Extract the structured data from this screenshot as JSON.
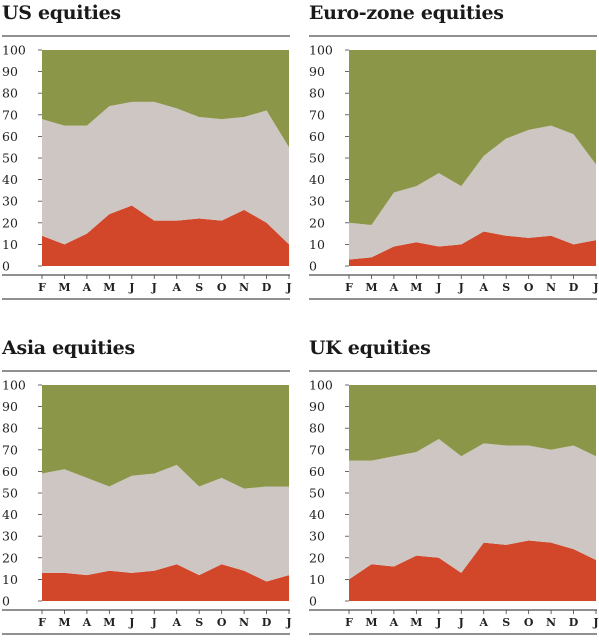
{
  "chart_data": [
    {
      "type": "area",
      "stacked": true,
      "title": "US equities",
      "categories": [
        "F",
        "M",
        "A",
        "M",
        "J",
        "J",
        "A",
        "S",
        "O",
        "N",
        "D",
        "J"
      ],
      "ylim": [
        0,
        100
      ],
      "yticks": [
        0,
        10,
        20,
        30,
        40,
        50,
        60,
        70,
        80,
        90,
        100
      ],
      "series": [
        {
          "color": "#d2472a",
          "values": [
            14,
            10,
            15,
            24,
            28,
            21,
            21,
            22,
            21,
            26,
            20,
            10
          ]
        },
        {
          "color": "#cdc6c3",
          "values": [
            54,
            55,
            50,
            50,
            48,
            55,
            52,
            47,
            47,
            43,
            52,
            45
          ]
        },
        {
          "color": "#8b9648",
          "values": [
            32,
            35,
            35,
            26,
            24,
            24,
            27,
            31,
            32,
            31,
            28,
            45
          ]
        }
      ]
    },
    {
      "type": "area",
      "stacked": true,
      "title": "Euro-zone equities",
      "categories": [
        "F",
        "M",
        "A",
        "M",
        "J",
        "J",
        "A",
        "S",
        "O",
        "N",
        "D",
        "J"
      ],
      "ylim": [
        0,
        100
      ],
      "yticks": [
        0,
        10,
        20,
        30,
        40,
        50,
        60,
        70,
        80,
        90,
        100
      ],
      "series": [
        {
          "color": "#d2472a",
          "values": [
            3,
            4,
            9,
            11,
            9,
            10,
            16,
            14,
            13,
            14,
            10,
            12
          ]
        },
        {
          "color": "#cdc6c3",
          "values": [
            17,
            15,
            25,
            26,
            34,
            27,
            35,
            45,
            50,
            51,
            51,
            35
          ]
        },
        {
          "color": "#8b9648",
          "values": [
            80,
            81,
            66,
            63,
            57,
            63,
            49,
            41,
            37,
            35,
            39,
            53
          ]
        }
      ]
    },
    {
      "type": "area",
      "stacked": true,
      "title": "Asia equities",
      "categories": [
        "F",
        "M",
        "A",
        "M",
        "J",
        "J",
        "A",
        "S",
        "O",
        "N",
        "D",
        "J"
      ],
      "ylim": [
        0,
        100
      ],
      "yticks": [
        0,
        10,
        20,
        30,
        40,
        50,
        60,
        70,
        80,
        90,
        100
      ],
      "series": [
        {
          "color": "#d2472a",
          "values": [
            13,
            13,
            12,
            14,
            13,
            14,
            17,
            12,
            17,
            14,
            9,
            12
          ]
        },
        {
          "color": "#cdc6c3",
          "values": [
            46,
            48,
            45,
            39,
            45,
            45,
            46,
            41,
            40,
            38,
            44,
            41
          ]
        },
        {
          "color": "#8b9648",
          "values": [
            41,
            39,
            43,
            47,
            42,
            41,
            37,
            47,
            43,
            48,
            47,
            47
          ]
        }
      ]
    },
    {
      "type": "area",
      "stacked": true,
      "title": "UK equities",
      "categories": [
        "F",
        "M",
        "A",
        "M",
        "J",
        "J",
        "A",
        "S",
        "O",
        "N",
        "D",
        "J"
      ],
      "ylim": [
        0,
        100
      ],
      "yticks": [
        0,
        10,
        20,
        30,
        40,
        50,
        60,
        70,
        80,
        90,
        100
      ],
      "series": [
        {
          "color": "#d2472a",
          "values": [
            10,
            17,
            16,
            21,
            20,
            13,
            27,
            26,
            28,
            27,
            24,
            19
          ]
        },
        {
          "color": "#cdc6c3",
          "values": [
            55,
            48,
            51,
            48,
            55,
            54,
            46,
            46,
            44,
            43,
            48,
            48
          ]
        },
        {
          "color": "#8b9648",
          "values": [
            35,
            35,
            33,
            31,
            25,
            33,
            27,
            28,
            28,
            30,
            28,
            33
          ]
        }
      ]
    }
  ]
}
